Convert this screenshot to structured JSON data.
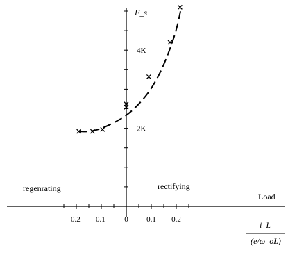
{
  "chart_data": {
    "type": "scatter",
    "title": "",
    "ylabel": "F_s",
    "xlabel": "Load",
    "xlabel_fraction": {
      "numerator": "i_L",
      "denominator": "(e/ω_oL)"
    },
    "x_ticks": [
      "-0.2",
      "-0.1",
      "0",
      "0.1",
      "0.2"
    ],
    "y_ticks": [
      "2K",
      "4K"
    ],
    "xlim": [
      -0.25,
      0.3
    ],
    "ylim": [
      0,
      5200
    ],
    "grid": false,
    "region_labels": {
      "left": "regenrating",
      "right": "rectifying"
    },
    "series": [
      {
        "marker": "x",
        "x": [
          -0.19,
          -0.135,
          -0.095,
          0.0,
          0.0,
          0.09,
          0.175,
          0.215
        ],
        "y": [
          1920,
          1920,
          1970,
          2540,
          2620,
          3320,
          4200,
          5100
        ]
      }
    ],
    "fit_curve": {
      "style": "dashed",
      "x": [
        -0.19,
        -0.15,
        -0.1,
        -0.05,
        0.0,
        0.05,
        0.1,
        0.15,
        0.2,
        0.22
      ],
      "y": [
        1920,
        1910,
        1990,
        2140,
        2320,
        2610,
        3000,
        3600,
        4480,
        5100
      ]
    }
  }
}
